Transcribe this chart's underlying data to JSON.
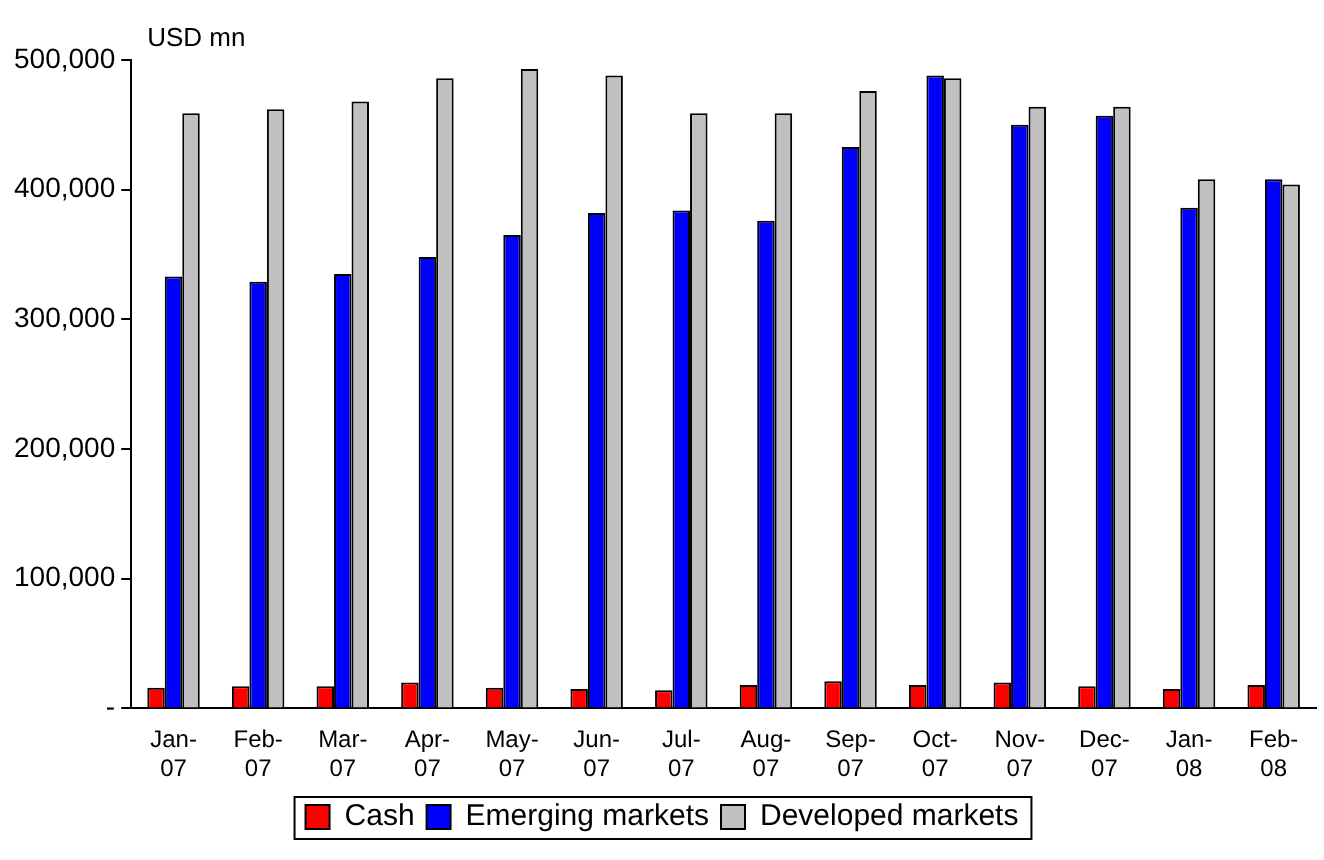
{
  "chart_data": {
    "type": "bar",
    "ylabel": "USD mn",
    "categories": [
      "Jan-07",
      "Feb-07",
      "Mar-07",
      "Apr-07",
      "May-07",
      "Jun-07",
      "Jul-07",
      "Aug-07",
      "Sep-07",
      "Oct-07",
      "Nov-07",
      "Dec-07",
      "Jan-08",
      "Feb-08"
    ],
    "series": [
      {
        "name": "Cash",
        "color": "#ff0000",
        "values": [
          16000,
          17000,
          17000,
          20000,
          16000,
          15000,
          14000,
          18000,
          21000,
          18000,
          20000,
          17000,
          15000,
          18000
        ]
      },
      {
        "name": "Emerging markets",
        "color": "#0000ff",
        "values": [
          333000,
          329000,
          335000,
          348000,
          365000,
          382000,
          384000,
          376000,
          433000,
          488000,
          450000,
          457000,
          386000,
          408000
        ]
      },
      {
        "name": "Developed markets",
        "color": "#c0c0c0",
        "values": [
          459000,
          462000,
          468000,
          486000,
          493000,
          488000,
          459000,
          459000,
          476000,
          486000,
          464000,
          464000,
          408000,
          404000
        ]
      }
    ],
    "ylim": [
      0,
      500000
    ],
    "yticks": [
      {
        "value": 0,
        "label": "-"
      },
      {
        "value": 100000,
        "label": "100,000"
      },
      {
        "value": 200000,
        "label": "200,000"
      },
      {
        "value": 300000,
        "label": "300,000"
      },
      {
        "value": 400000,
        "label": "400,000"
      },
      {
        "value": 500000,
        "label": "500,000"
      }
    ],
    "grid": false,
    "legend": "bottom"
  }
}
